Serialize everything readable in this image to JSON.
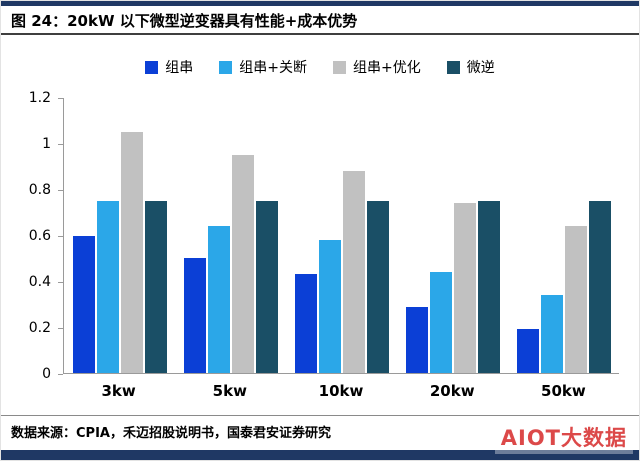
{
  "header": {
    "title": "图 24：20kW 以下微型逆变器具有性能+成本优势"
  },
  "footer": {
    "source": "数据来源：CPIA，禾迈招股说明书，国泰君安证券研究"
  },
  "watermark": {
    "text": "AIOT大数据"
  },
  "colors": {
    "accent_bar": "#1F3864",
    "axis": "#9a9a9a"
  },
  "chart_data": {
    "type": "bar",
    "title": "20kW 以下微型逆变器具有性能+成本优势",
    "categories": [
      "3kw",
      "5kw",
      "10kw",
      "20kw",
      "50kw"
    ],
    "series": [
      {
        "name": "组串",
        "color": "#0B3FD6",
        "values": [
          0.6,
          0.5,
          0.43,
          0.29,
          0.19
        ]
      },
      {
        "name": "组串+关断",
        "color": "#2BA7E8",
        "values": [
          0.75,
          0.64,
          0.58,
          0.44,
          0.34
        ]
      },
      {
        "name": "组串+优化",
        "color": "#C1C1C1",
        "values": [
          1.05,
          0.95,
          0.88,
          0.74,
          0.64
        ]
      },
      {
        "name": "微逆",
        "color": "#1A4F66",
        "values": [
          0.75,
          0.75,
          0.75,
          0.75,
          0.75
        ]
      }
    ],
    "xlabel": "",
    "ylabel": "",
    "ylim": [
      0,
      1.2
    ],
    "yticks": [
      0,
      0.2,
      0.4,
      0.6,
      0.8,
      1,
      1.2
    ],
    "ytick_labels": [
      "0",
      "0.2",
      "0.4",
      "0.6",
      "0.8",
      "1",
      "1.2"
    ],
    "grid": false,
    "legend_position": "top"
  }
}
